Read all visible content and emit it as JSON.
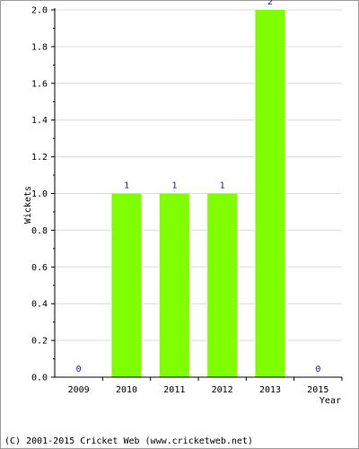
{
  "chart_data": {
    "type": "bar",
    "categories": [
      "2009",
      "2010",
      "2011",
      "2012",
      "2013",
      "2015"
    ],
    "values": [
      0,
      1,
      1,
      1,
      2,
      0
    ],
    "data_labels": [
      "0",
      "1",
      "1",
      "1",
      "2",
      "0"
    ],
    "xlabel": "Year",
    "ylabel": "Wickets",
    "ylim": [
      0,
      2.0
    ],
    "yticks": [
      "0.0",
      "0.2",
      "0.4",
      "0.6",
      "0.8",
      "1.0",
      "1.2",
      "1.4",
      "1.6",
      "1.8",
      "2.0"
    ],
    "grid": true,
    "bar_color": "#80ff00",
    "grid_color": "#dcdcdc",
    "data_label_color": "#1a1a8c"
  },
  "footer": {
    "copyright": "(C) 2001-2015 Cricket Web (www.cricketweb.net)"
  }
}
